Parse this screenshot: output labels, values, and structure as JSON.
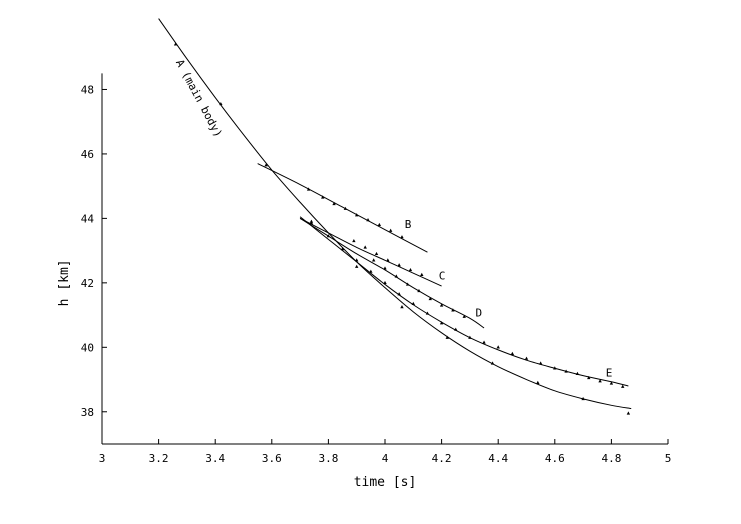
{
  "chart_data": {
    "type": "scatter",
    "title": "",
    "xlabel": "time [s]",
    "ylabel": "h [km]",
    "xlim": [
      3,
      5
    ],
    "ylim": [
      37,
      50
    ],
    "x_ticks": [
      "3",
      "3.2",
      "3.4",
      "3.6",
      "3.8",
      "4",
      "4.2",
      "4.4",
      "4.6",
      "4.8",
      "5"
    ],
    "y_ticks": [
      "38",
      "40",
      "42",
      "44",
      "46",
      "48"
    ],
    "grid": false,
    "series": [
      {
        "name": "A (main body)",
        "points": [
          [
            3.26,
            49.4
          ],
          [
            3.42,
            47.55
          ],
          [
            3.58,
            45.65
          ],
          [
            3.74,
            43.9
          ],
          [
            3.9,
            42.5
          ],
          [
            4.06,
            41.25
          ],
          [
            4.22,
            40.3
          ],
          [
            4.38,
            39.5
          ],
          [
            4.54,
            38.9
          ],
          [
            4.7,
            38.4
          ],
          [
            4.86,
            37.95
          ]
        ],
        "fit": [
          [
            3.2,
            50.2
          ],
          [
            3.3,
            48.95
          ],
          [
            3.4,
            47.75
          ],
          [
            3.5,
            46.6
          ],
          [
            3.6,
            45.5
          ],
          [
            3.7,
            44.5
          ],
          [
            3.8,
            43.55
          ],
          [
            3.9,
            42.65
          ],
          [
            4.0,
            41.85
          ],
          [
            4.1,
            41.1
          ],
          [
            4.2,
            40.45
          ],
          [
            4.3,
            39.88
          ],
          [
            4.4,
            39.4
          ],
          [
            4.5,
            39.0
          ],
          [
            4.6,
            38.65
          ],
          [
            4.7,
            38.4
          ],
          [
            4.8,
            38.2
          ],
          [
            4.87,
            38.1
          ]
        ]
      },
      {
        "name": "B",
        "points": [
          [
            3.73,
            44.9
          ],
          [
            3.78,
            44.65
          ],
          [
            3.82,
            44.45
          ],
          [
            3.86,
            44.3
          ],
          [
            3.9,
            44.1
          ],
          [
            3.94,
            43.95
          ],
          [
            3.98,
            43.8
          ],
          [
            4.02,
            43.62
          ],
          [
            4.06,
            43.42
          ]
        ],
        "fit": [
          [
            3.55,
            45.7
          ],
          [
            3.7,
            45.05
          ],
          [
            3.85,
            44.35
          ],
          [
            4.0,
            43.65
          ],
          [
            4.15,
            42.95
          ]
        ]
      },
      {
        "name": "C",
        "points": [
          [
            3.89,
            43.3
          ],
          [
            3.93,
            43.1
          ],
          [
            3.97,
            42.9
          ],
          [
            4.01,
            42.7
          ],
          [
            4.05,
            42.55
          ],
          [
            4.09,
            42.4
          ],
          [
            4.13,
            42.25
          ]
        ],
        "fit": [
          [
            3.7,
            44.0
          ],
          [
            3.8,
            43.55
          ],
          [
            3.9,
            43.1
          ],
          [
            4.0,
            42.7
          ],
          [
            4.1,
            42.3
          ],
          [
            4.2,
            41.9
          ]
        ]
      },
      {
        "name": "D",
        "points": [
          [
            3.96,
            42.7
          ],
          [
            4.0,
            42.45
          ],
          [
            4.04,
            42.2
          ],
          [
            4.08,
            41.95
          ],
          [
            4.12,
            41.75
          ],
          [
            4.16,
            41.5
          ],
          [
            4.2,
            41.3
          ],
          [
            4.24,
            41.15
          ],
          [
            4.28,
            40.95
          ]
        ],
        "fit": [
          [
            3.7,
            44.0
          ],
          [
            3.8,
            43.45
          ],
          [
            3.9,
            42.9
          ],
          [
            4.0,
            42.4
          ],
          [
            4.1,
            41.85
          ],
          [
            4.2,
            41.35
          ],
          [
            4.3,
            40.9
          ],
          [
            4.35,
            40.6
          ]
        ]
      },
      {
        "name": "E",
        "points": [
          [
            3.74,
            43.85
          ],
          [
            3.8,
            43.45
          ],
          [
            3.85,
            43.05
          ],
          [
            3.9,
            42.7
          ],
          [
            3.95,
            42.35
          ],
          [
            4.0,
            42.0
          ],
          [
            4.05,
            41.65
          ],
          [
            4.1,
            41.35
          ],
          [
            4.15,
            41.05
          ],
          [
            4.2,
            40.75
          ],
          [
            4.25,
            40.55
          ],
          [
            4.3,
            40.3
          ],
          [
            4.35,
            40.15
          ],
          [
            4.4,
            40.0
          ],
          [
            4.45,
            39.8
          ],
          [
            4.5,
            39.65
          ],
          [
            4.55,
            39.5
          ],
          [
            4.6,
            39.35
          ],
          [
            4.64,
            39.25
          ],
          [
            4.68,
            39.18
          ],
          [
            4.72,
            39.05
          ],
          [
            4.76,
            38.95
          ],
          [
            4.8,
            38.88
          ],
          [
            4.84,
            38.78
          ]
        ],
        "fit": [
          [
            3.7,
            44.05
          ],
          [
            3.8,
            43.35
          ],
          [
            3.9,
            42.65
          ],
          [
            4.0,
            41.95
          ],
          [
            4.1,
            41.32
          ],
          [
            4.2,
            40.78
          ],
          [
            4.3,
            40.3
          ],
          [
            4.4,
            39.92
          ],
          [
            4.5,
            39.6
          ],
          [
            4.6,
            39.35
          ],
          [
            4.7,
            39.12
          ],
          [
            4.8,
            38.93
          ],
          [
            4.86,
            38.8
          ]
        ]
      }
    ],
    "labels": [
      {
        "text": "A (main body)",
        "x": 3.26,
        "y": 48.85,
        "angle": 62
      },
      {
        "text": "B",
        "x": 4.07,
        "y": 43.7
      },
      {
        "text": "C",
        "x": 4.19,
        "y": 42.1
      },
      {
        "text": "D",
        "x": 4.32,
        "y": 40.95
      },
      {
        "text": "E",
        "x": 4.78,
        "y": 39.1
      }
    ]
  }
}
